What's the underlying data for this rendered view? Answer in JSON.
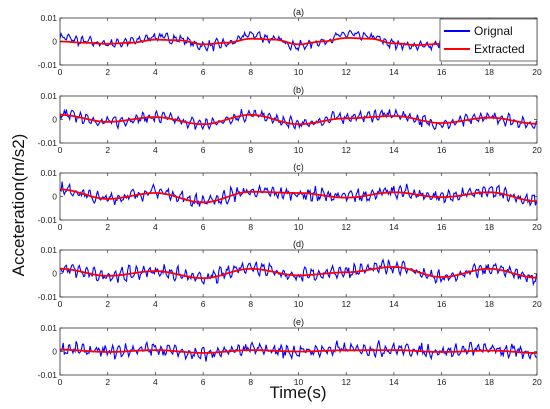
{
  "chart_data": [
    {
      "type": "line",
      "panel_label": "(a)",
      "x_range": [
        0,
        20
      ],
      "ylim": [
        -0.01,
        0.01
      ],
      "yticks": [
        "0.01",
        "0",
        "-0.01"
      ],
      "xticks": [
        "0",
        "2",
        "4",
        "6",
        "8",
        "10",
        "12",
        "14",
        "16",
        "18",
        "20"
      ],
      "series": [
        {
          "name": "Orignal",
          "color": "#0000ff",
          "x": [
            0,
            1,
            2,
            3,
            4,
            5,
            6,
            7,
            8,
            9,
            10,
            11,
            12,
            13,
            14,
            15,
            16
          ],
          "y": [
            0.002,
            0.0,
            -0.001,
            0.0,
            0.002,
            0.001,
            -0.002,
            -0.001,
            0.003,
            0.001,
            -0.002,
            0.0,
            0.003,
            0.002,
            -0.001,
            -0.002,
            -0.001
          ],
          "noise": 0.0025
        },
        {
          "name": "Extracted",
          "color": "#ff0000",
          "x": [
            0,
            1,
            2,
            3,
            4,
            5,
            6,
            7,
            8,
            9,
            10,
            11,
            12,
            13,
            14,
            15,
            16
          ],
          "y": [
            0.0,
            -0.0005,
            -0.001,
            -0.0005,
            0.0008,
            0.0005,
            -0.0012,
            -0.0005,
            0.0012,
            0.0008,
            -0.0012,
            0.0,
            0.0015,
            0.0012,
            -0.0008,
            -0.0015,
            -0.001
          ]
        }
      ]
    },
    {
      "type": "line",
      "panel_label": "(b)",
      "x_range": [
        0,
        20
      ],
      "ylim": [
        -0.01,
        0.01
      ],
      "yticks": [
        "0.01",
        "0",
        "-0.01"
      ],
      "xticks": [
        "0",
        "2",
        "4",
        "6",
        "8",
        "10",
        "12",
        "14",
        "16",
        "18",
        "20"
      ],
      "series": [
        {
          "name": "Orignal",
          "color": "#0000ff",
          "x": [
            0,
            2,
            4,
            6,
            8,
            10,
            12,
            14,
            16,
            18,
            20
          ],
          "y": [
            0.002,
            -0.001,
            0.001,
            -0.002,
            0.002,
            -0.002,
            0.001,
            0.002,
            -0.002,
            0.001,
            -0.002
          ],
          "noise": 0.003
        },
        {
          "name": "Extracted",
          "color": "#ff0000",
          "x": [
            0,
            2,
            4,
            6,
            8,
            10,
            12,
            14,
            16,
            18,
            20
          ],
          "y": [
            0.002,
            -0.001,
            0.001,
            -0.002,
            0.002,
            -0.002,
            0.0005,
            0.0015,
            -0.0015,
            0.0008,
            -0.0018
          ]
        }
      ]
    },
    {
      "type": "line",
      "panel_label": "(c)",
      "x_range": [
        0,
        20
      ],
      "ylim": [
        -0.01,
        0.01
      ],
      "yticks": [
        "0.01",
        "0",
        "-0.01"
      ],
      "xticks": [
        "0",
        "2",
        "4",
        "6",
        "8",
        "10",
        "12",
        "14",
        "16",
        "18",
        "20"
      ],
      "series": [
        {
          "name": "Orignal",
          "color": "#0000ff",
          "x": [
            0,
            2,
            4,
            6,
            8,
            10,
            12,
            14,
            16,
            18,
            20
          ],
          "y": [
            0.003,
            -0.001,
            0.002,
            -0.002,
            0.002,
            0.001,
            0.0,
            0.002,
            0.0,
            0.002,
            -0.002
          ],
          "noise": 0.0035
        },
        {
          "name": "Extracted",
          "color": "#ff0000",
          "x": [
            0,
            2,
            4,
            6,
            8,
            10,
            12,
            14,
            16,
            18,
            20
          ],
          "y": [
            0.003,
            -0.001,
            0.0015,
            -0.0025,
            0.002,
            0.0015,
            -0.0005,
            0.0018,
            -0.0003,
            0.0018,
            -0.002
          ]
        }
      ]
    },
    {
      "type": "line",
      "panel_label": "(d)",
      "x_range": [
        0,
        20
      ],
      "ylim": [
        -0.01,
        0.01
      ],
      "yticks": [
        "0.01",
        "0",
        "-0.01"
      ],
      "xticks": [
        "0",
        "2",
        "4",
        "6",
        "8",
        "10",
        "12",
        "14",
        "16",
        "18",
        "20"
      ],
      "series": [
        {
          "name": "Orignal",
          "color": "#0000ff",
          "x": [
            0,
            2,
            4,
            6,
            8,
            10,
            12,
            14,
            16,
            18,
            20
          ],
          "y": [
            0.002,
            -0.001,
            0.001,
            -0.002,
            0.003,
            -0.001,
            0.001,
            0.003,
            -0.002,
            0.002,
            -0.002
          ],
          "noise": 0.0035
        },
        {
          "name": "Extracted",
          "color": "#ff0000",
          "x": [
            0,
            2,
            4,
            6,
            8,
            10,
            12,
            14,
            16,
            18,
            20
          ],
          "y": [
            0.002,
            -0.001,
            0.001,
            -0.002,
            0.002,
            -0.0008,
            0.0005,
            0.0028,
            -0.0015,
            0.002,
            -0.0018
          ]
        }
      ]
    },
    {
      "type": "line",
      "panel_label": "(e)",
      "x_range": [
        0,
        20
      ],
      "ylim": [
        -0.01,
        0.01
      ],
      "yticks": [
        "0.01",
        "0",
        "-0.01"
      ],
      "xticks": [
        "0",
        "2",
        "4",
        "6",
        "8",
        "10",
        "12",
        "14",
        "16",
        "18",
        "20"
      ],
      "series": [
        {
          "name": "Orignal",
          "color": "#0000ff",
          "x": [
            0,
            2,
            4,
            6,
            8,
            10,
            12,
            14,
            16,
            18,
            20
          ],
          "y": [
            0.001,
            0.0,
            0.001,
            -0.001,
            0.001,
            0.0,
            0.001,
            0.001,
            0.0,
            0.001,
            -0.001
          ],
          "noise": 0.0035
        },
        {
          "name": "Extracted",
          "color": "#ff0000",
          "x": [
            0,
            2,
            4,
            6,
            8,
            10,
            12,
            14,
            16,
            18,
            20
          ],
          "y": [
            0.0008,
            -0.0002,
            0.0006,
            -0.0006,
            0.0006,
            0.0,
            0.0005,
            0.0006,
            -0.0002,
            0.0004,
            -0.0006
          ]
        }
      ]
    }
  ],
  "xlabel": "Time(s)",
  "ylabel": "Acceteration(m/s2)",
  "legend": {
    "placement": "top-right",
    "entries": [
      {
        "name": "Orignal",
        "color": "#0000ff"
      },
      {
        "name": "Extracted",
        "color": "#ff0000"
      }
    ]
  }
}
